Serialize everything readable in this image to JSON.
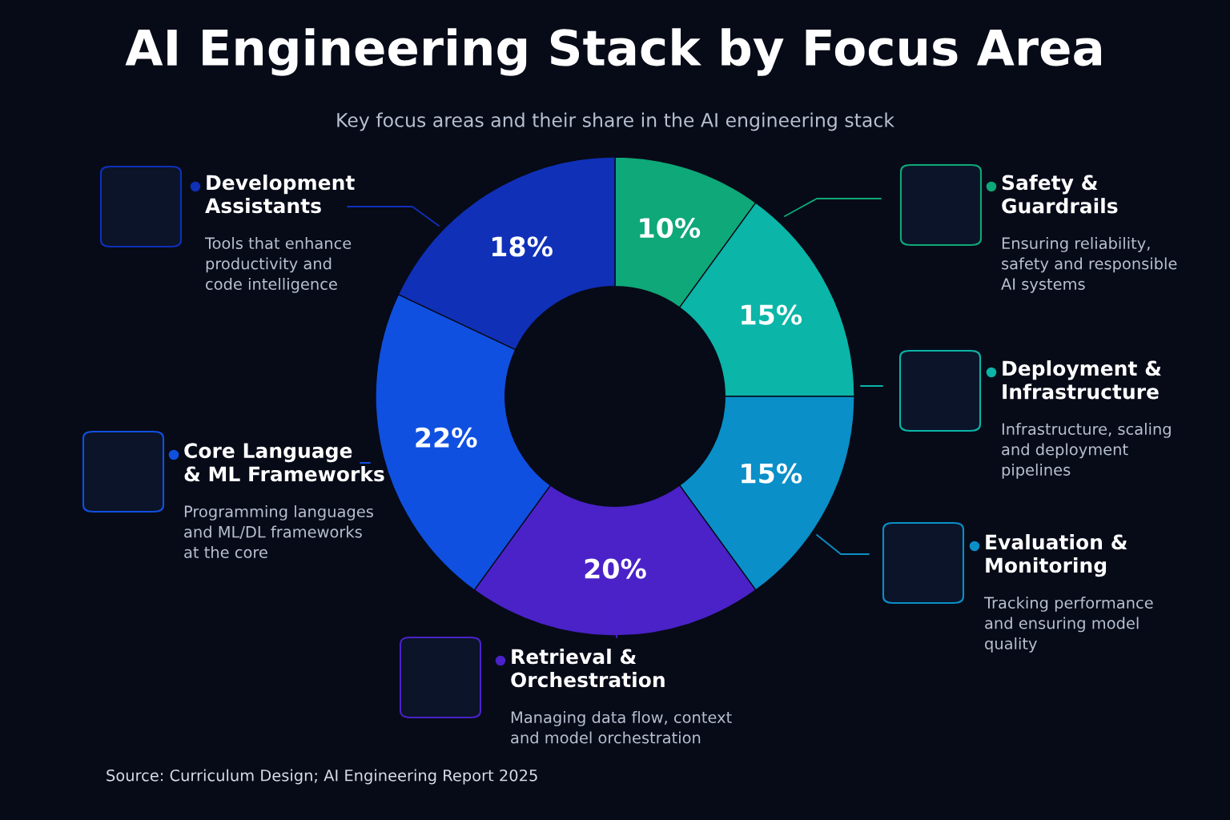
{
  "chart_data": {
    "type": "donut",
    "title": "AI Engineering Stack by Focus Area",
    "subtitle": "Key focus areas and their share in the AI engineering stack",
    "categories": [
      "Safety &\nGuardrails",
      "Deployment &\nInfrastructure",
      "Evaluation &\nMonitoring",
      "Retrieval &\nOrchestration",
      "Core Language\n& ML Frameworks",
      "Development\nAssistants"
    ],
    "values": [
      10,
      15,
      15,
      20,
      22,
      18
    ],
    "value_labels": [
      "10%",
      "15%",
      "15%",
      "20%",
      "22%",
      "18%"
    ],
    "colors": [
      "#0fa878",
      "#0bb5a8",
      "#0a8fc8",
      "#4a22c8",
      "#1050e0",
      "#1030b8"
    ],
    "annotations": [
      "Ensuring reliability,\nsafety and responsible\nAI systems",
      "Infrastructure, scaling\nand deployment\npipelines",
      "Tracking performance\nand ensuring model\nquality",
      "Managing data flow, context\nand model orchestration",
      "Programming languages\nand ML/DL frameworks\nat the core",
      "Tools that enhance\nproductivity and\ncode intelligence",
      "Source: Curriculum Design; AI Engineering Report 2025"
    ],
    "legend": "right"
  }
}
